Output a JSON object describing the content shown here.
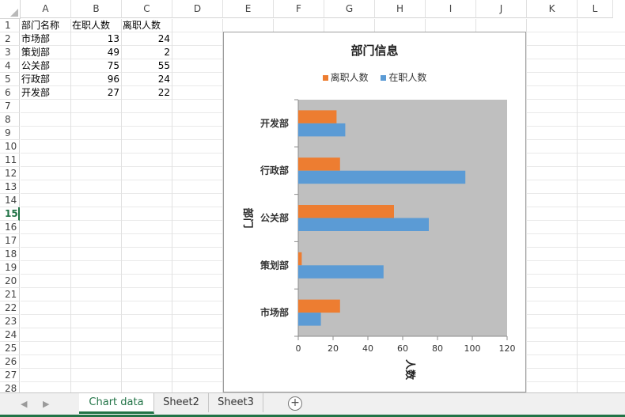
{
  "columns": [
    "A",
    "B",
    "C",
    "D",
    "E",
    "F",
    "G",
    "H",
    "I",
    "J",
    "K",
    "L"
  ],
  "rows": [
    "1",
    "2",
    "3",
    "4",
    "5",
    "6",
    "7",
    "8",
    "9",
    "10",
    "11",
    "12",
    "13",
    "14",
    "15",
    "16",
    "17",
    "18",
    "19",
    "20",
    "21",
    "22",
    "23",
    "24",
    "25",
    "26",
    "27",
    "28"
  ],
  "active_row": "15",
  "table": {
    "headers": [
      "部门名称",
      "在职人数",
      "离职人数"
    ],
    "rows": [
      [
        "市场部",
        "13",
        "24"
      ],
      [
        "策划部",
        "49",
        "2"
      ],
      [
        "公关部",
        "75",
        "55"
      ],
      [
        "行政部",
        "96",
        "24"
      ],
      [
        "开发部",
        "27",
        "22"
      ]
    ]
  },
  "chart_data": {
    "type": "bar",
    "orientation": "horizontal",
    "title": "部门信息",
    "xlabel": "人数",
    "ylabel": "部门",
    "categories": [
      "市场部",
      "策划部",
      "公关部",
      "行政部",
      "开发部"
    ],
    "series": [
      {
        "name": "离职人数",
        "values": [
          24,
          2,
          55,
          24,
          22
        ],
        "color": "#ED7D31"
      },
      {
        "name": "在职人数",
        "values": [
          13,
          49,
          75,
          96,
          27
        ],
        "color": "#5B9BD5"
      }
    ],
    "xlim": [
      0,
      120
    ],
    "xticks": [
      0,
      20,
      40,
      60,
      80,
      100,
      120
    ],
    "plot_background": "#BFBFBF",
    "legend_position": "top",
    "grid": false
  },
  "sheet_tabs": [
    {
      "label": "Chart data",
      "active": true
    },
    {
      "label": "Sheet2",
      "active": false
    },
    {
      "label": "Sheet3",
      "active": false
    }
  ],
  "nav": {
    "prev": "◀",
    "next": "▶",
    "add": "+"
  },
  "colors": {
    "accent": "#217346"
  }
}
